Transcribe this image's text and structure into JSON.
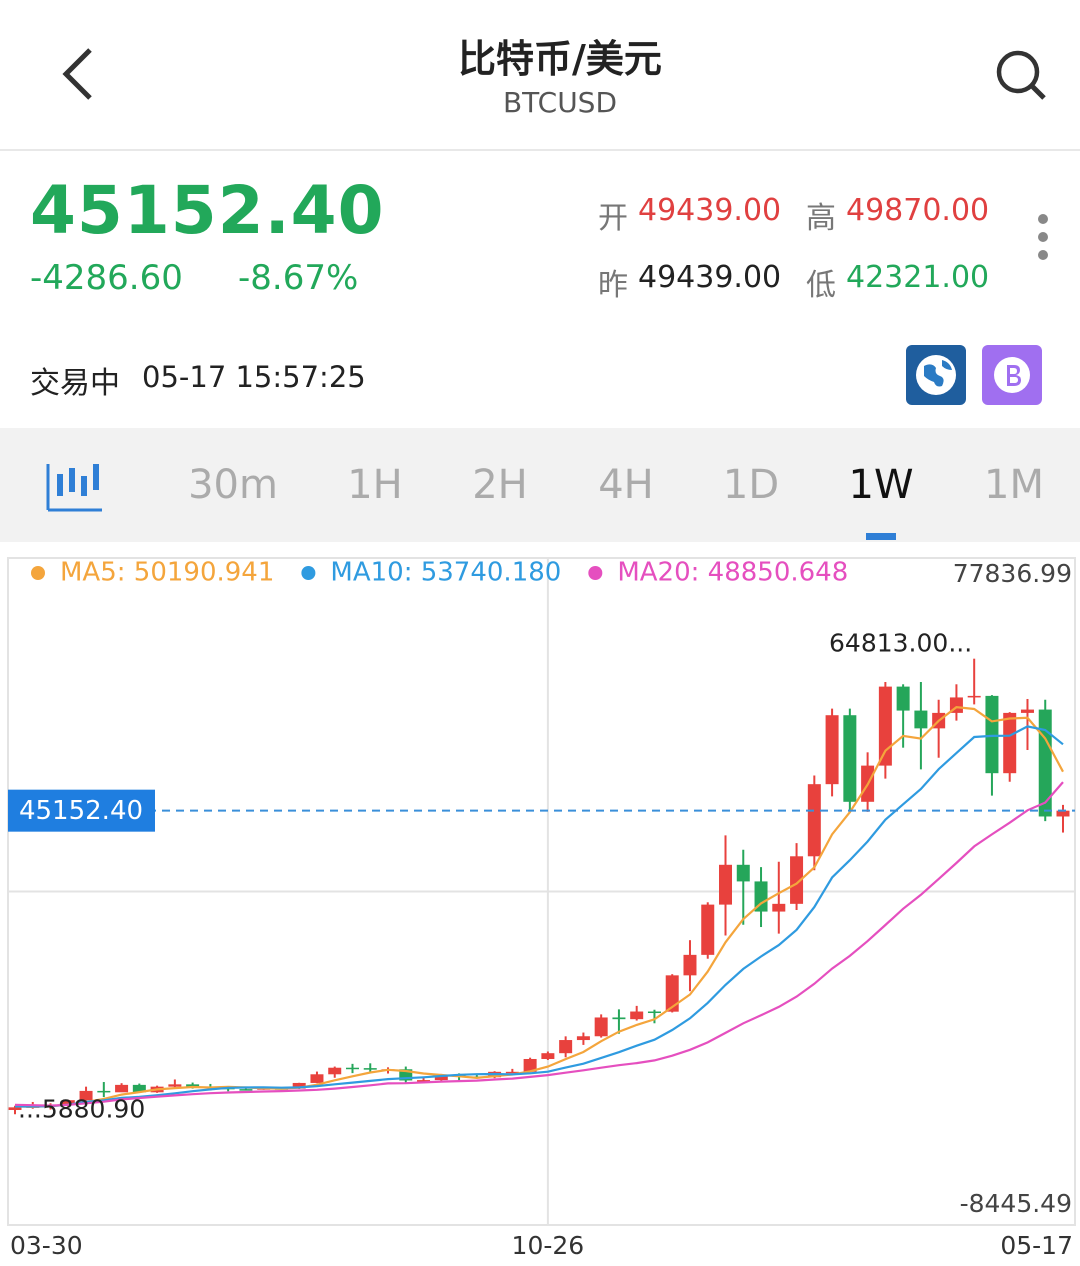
{
  "header": {
    "title": "比特币/美元",
    "symbol": "BTCUSD"
  },
  "quote": {
    "price": "45152.40",
    "change": "-4286.60",
    "change_pct": "-8.67%",
    "open_label": "开",
    "open": "49439.00",
    "high_label": "高",
    "high": "49870.00",
    "prev_label": "昨",
    "prev_close": "49439.00",
    "low_label": "低",
    "low": "42321.00"
  },
  "status": {
    "state": "交易中",
    "time": "05-17 15:57:25"
  },
  "tabs": {
    "items": [
      "30m",
      "1H",
      "2H",
      "4H",
      "1D",
      "1W",
      "1M"
    ],
    "selected": 5
  },
  "chart_data": {
    "type": "candlestick",
    "categories": [
      "03-30",
      null,
      null,
      null,
      null,
      null,
      null,
      null,
      null,
      null,
      null,
      null,
      null,
      null,
      null,
      null,
      null,
      null,
      null,
      null,
      null,
      null,
      null,
      null,
      null,
      null,
      null,
      null,
      null,
      null,
      "10-26",
      null,
      null,
      null,
      null,
      null,
      null,
      null,
      null,
      null,
      null,
      null,
      null,
      null,
      null,
      null,
      null,
      null,
      null,
      null,
      null,
      null,
      null,
      null,
      null,
      null,
      null,
      null,
      null,
      "05-17"
    ],
    "open": [
      6430,
      6775,
      6900,
      7120,
      7700,
      8900,
      8720,
      9680,
      8720,
      9450,
      9750,
      9470,
      9300,
      9130,
      9070,
      9250,
      9200,
      9930,
      11050,
      11900,
      11850,
      11650,
      11700,
      10250,
      10300,
      10920,
      10770,
      10670,
      11370,
      11370,
      13030,
      13780,
      15480,
      15970,
      18400,
      18180,
      19170,
      19150,
      23850,
      26500,
      33000,
      38150,
      36000,
      32100,
      33100,
      39250,
      48580,
      57500,
      46300,
      50980,
      61200,
      58100,
      55800,
      57800,
      59800,
      60000,
      50000,
      57800,
      58230,
      44400
    ],
    "high": [
      6980,
      7470,
      7300,
      7750,
      9450,
      10050,
      9900,
      9850,
      9580,
      10380,
      9980,
      9800,
      9400,
      9300,
      9450,
      9330,
      9950,
      11400,
      12050,
      12400,
      12470,
      11950,
      12050,
      10580,
      11100,
      11170,
      10950,
      11450,
      11750,
      13200,
      14000,
      15960,
      16450,
      18800,
      19450,
      19900,
      19400,
      24000,
      28400,
      33300,
      41950,
      40100,
      37850,
      38550,
      40950,
      49700,
      58350,
      58350,
      52700,
      61800,
      61500,
      61800,
      59500,
      61500,
      64813,
      60100,
      57900,
      59600,
      59500,
      45900
    ],
    "low": [
      5880.9,
      6600,
      6500,
      6800,
      7650,
      8100,
      8800,
      8630,
      8650,
      9300,
      9200,
      8950,
      8850,
      8950,
      9050,
      9100,
      9150,
      9900,
      10600,
      11200,
      11300,
      11150,
      9900,
      9900,
      10250,
      10150,
      10500,
      10550,
      11250,
      11400,
      12900,
      13250,
      14850,
      15800,
      16300,
      18000,
      17650,
      19050,
      21800,
      26000,
      29000,
      30400,
      30100,
      29250,
      32300,
      37450,
      47000,
      44900,
      45000,
      49300,
      53300,
      50500,
      52000,
      56800,
      58900,
      47100,
      48900,
      53000,
      43800,
      42321
    ],
    "close": [
      6775,
      6900,
      7120,
      7700,
      8900,
      8720,
      9680,
      8720,
      9450,
      9750,
      9470,
      9300,
      9130,
      9070,
      9250,
      9200,
      9930,
      11050,
      11900,
      11850,
      11650,
      11700,
      10250,
      10300,
      10920,
      10770,
      10670,
      11370,
      11370,
      13030,
      13780,
      15480,
      15970,
      18400,
      18180,
      19170,
      19150,
      23850,
      26500,
      33000,
      38150,
      36000,
      32100,
      33100,
      39250,
      48580,
      57500,
      46300,
      50980,
      61200,
      58100,
      55800,
      57800,
      59800,
      60000,
      50000,
      57800,
      58230,
      44400,
      45152.4
    ],
    "up_color": "#e8413d",
    "down_color": "#25a65a",
    "series": [
      {
        "name": "MA5: 50190.941",
        "color": "#f4a53c",
        "values": [
          6900,
          6840,
          6930,
          7120,
          7480,
          7870,
          8420,
          8740,
          9090,
          9260,
          9410,
          9340,
          9420,
          9340,
          9240,
          9190,
          9320,
          9700,
          10270,
          10790,
          11280,
          11630,
          11470,
          11150,
          10960,
          10790,
          10580,
          10810,
          11020,
          11440,
          12040,
          13010,
          13930,
          15330,
          16560,
          17440,
          18170,
          19750,
          21370,
          24330,
          28130,
          31120,
          33150,
          34470,
          35720,
          37800,
          42100,
          44950,
          48520,
          52910,
          54820,
          54480,
          56780,
          58540,
          58300,
          56700,
          57080,
          57170,
          54490,
          50190.941
        ]
      },
      {
        "name": "MA10: 53740.180",
        "color": "#2f9be0",
        "values": [
          6900,
          6880,
          6930,
          7120,
          7480,
          7680,
          8000,
          8140,
          8340,
          8590,
          8860,
          9100,
          9300,
          9340,
          9370,
          9320,
          9350,
          9520,
          9760,
          9970,
          10190,
          10430,
          10540,
          10660,
          10830,
          10980,
          11060,
          11090,
          11040,
          11180,
          11390,
          11910,
          12420,
          13170,
          13910,
          14750,
          15530,
          16780,
          18290,
          20280,
          22620,
          24680,
          26290,
          27760,
          29740,
          32680,
          36510,
          38750,
          41170,
          43990,
          45980,
          47960,
          50530,
          52600,
          54680,
          54820,
          54850,
          56050,
          55590,
          53740.18
        ]
      },
      {
        "name": "MA20: 48850.648",
        "color": "#e54fbf",
        "values": [
          7100,
          7050,
          7000,
          7100,
          7300,
          7500,
          7800,
          7980,
          8150,
          8320,
          8480,
          8600,
          8700,
          8760,
          8820,
          8880,
          8950,
          9040,
          9200,
          9400,
          9630,
          9870,
          9900,
          10000,
          10100,
          10170,
          10240,
          10370,
          10490,
          10710,
          10940,
          11250,
          11560,
          11900,
          12230,
          12500,
          12850,
          13460,
          14220,
          15180,
          16400,
          17640,
          18680,
          19770,
          21100,
          22760,
          24720,
          26370,
          28280,
          30360,
          32460,
          34270,
          36330,
          38380,
          40530,
          42080,
          43600,
          45200,
          46200,
          48850.648
        ]
      }
    ],
    "ylim": [
      -8445.49,
      77836.99
    ],
    "yticks": [
      -8445.49,
      77836.99
    ],
    "last_price": {
      "value": 45152.4,
      "label": "45152.40"
    },
    "max_marker": {
      "value": 64813,
      "label": "64813.00..."
    },
    "min_marker": {
      "value": 5880.9,
      "label": "...5880.90"
    }
  }
}
